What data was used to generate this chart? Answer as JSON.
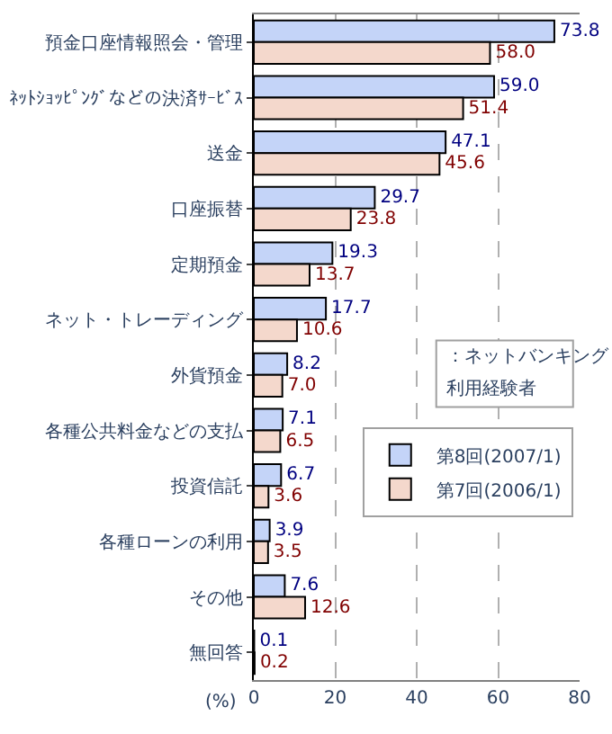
{
  "chart_data": {
    "type": "bar",
    "orientation": "horizontal",
    "categories": [
      "預金口座情報照会・管理",
      "ﾈｯﾄｼｮｯﾋﾟﾝｸﾞなどの決済ｻｰﾋﾞｽ",
      "送金",
      "口座振替",
      "定期預金",
      "ネット・トレーディング",
      "外貨預金",
      "各種公共料金などの支払",
      "投資信託",
      "各種ローンの利用",
      "その他",
      "無回答"
    ],
    "series": [
      {
        "name": "第8回(2007/1)",
        "color": "#c4d4f8",
        "values": [
          73.8,
          59.0,
          47.1,
          29.7,
          19.3,
          17.7,
          8.2,
          7.1,
          6.7,
          3.9,
          7.6,
          0.1
        ],
        "value_labels": [
          "73.8",
          "59.0",
          "47.1",
          "29.7",
          "19.3",
          "17.7",
          "8.2",
          "7.1",
          "6.7",
          "3.9",
          "7.6",
          "0.1"
        ]
      },
      {
        "name": "第7回(2006/1)",
        "color": "#f4d8cc",
        "values": [
          58.0,
          51.4,
          45.6,
          23.8,
          13.7,
          10.6,
          7.0,
          6.5,
          3.6,
          3.5,
          12.6,
          0.2
        ],
        "value_labels": [
          "58.0",
          "51.4",
          "45.6",
          "23.8",
          "13.7",
          "10.6",
          "7.0",
          "6.5",
          "3.6",
          "3.5",
          "12.6",
          "0.2"
        ]
      }
    ],
    "xlim": [
      0,
      80
    ],
    "xticks": [
      0,
      20,
      40,
      60,
      80
    ],
    "xlabel": "(%)",
    "annotations": [
      "：ネットバンキング",
      "利用経験者"
    ],
    "grid": "x",
    "legend": "right"
  }
}
